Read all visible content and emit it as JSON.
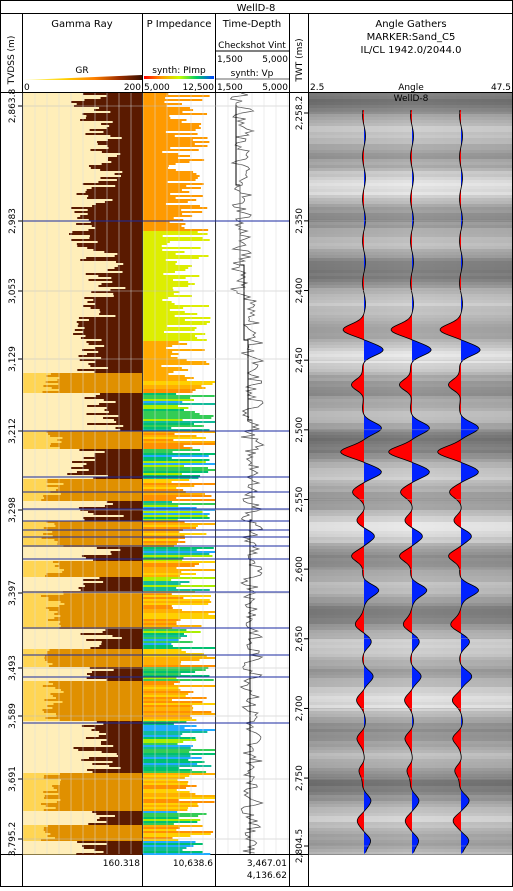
{
  "title": "WellD-8",
  "tracks": {
    "depth_label": "TVDSS (m)",
    "gamma": {
      "header": "Gamma Ray",
      "curve": "GR",
      "min_label": "0",
      "max_label": "200",
      "footer_value": "160.318"
    },
    "impedance": {
      "header": "P Impedance",
      "curve": "synth: PImp",
      "min_label": "5,000",
      "max_label": "12,500",
      "footer_value": "10,638.6"
    },
    "timedepth": {
      "header": "Time-Depth",
      "sub1": "Checkshot Vint",
      "sub1_min": "1,500",
      "sub1_max": "5,000",
      "sub2": "synth: Vp",
      "sub2_min": "1,500",
      "sub2_max": "5,000",
      "footer_value1": "3,467.01",
      "footer_value2": "4,136.62"
    },
    "twt_label": "TWT (ms)",
    "gathers": {
      "header1": "Angle Gathers",
      "header2": "MARKER:Sand_C5",
      "header3": "IL/CL 1942.0/2044.0",
      "axis_min": "2.5",
      "axis_title": "Angle",
      "axis_max": "47.5",
      "well_label": "WellD-8"
    }
  },
  "chart_data": {
    "type": "well-log",
    "title": "WellD-8",
    "depth_axis": {
      "label": "TVDSS (m)",
      "ticks": [
        "2,863.8",
        "2,983",
        "3,053",
        "3,129",
        "3,212",
        "3,298",
        "3,397",
        "3,493",
        "3,589",
        "3,691",
        "3,795.2"
      ]
    },
    "twt_axis": {
      "label": "TWT (ms)",
      "ticks": [
        "2,258.2",
        "2,350",
        "2,400",
        "2,450",
        "2,500",
        "2,550",
        "2,600",
        "2,650",
        "2,700",
        "2,750",
        "2,804.5"
      ],
      "range": [
        2258.2,
        2804.5
      ]
    },
    "gamma_ray": {
      "curve": "GR",
      "xlim": [
        0,
        200
      ],
      "footer": 160.318
    },
    "p_impedance": {
      "curve": "synth: PImp",
      "xlim": [
        5000,
        12500
      ],
      "footer": 10638.6
    },
    "time_depth": {
      "curves": [
        "Checkshot Vint",
        "synth: Vp"
      ],
      "xlim": [
        1500,
        5000
      ],
      "footer": [
        3467.01,
        4136.62
      ]
    },
    "angle_gathers": {
      "marker": "Sand_C5",
      "ilcl": "1942.0/2044.0",
      "angle_range": [
        2.5,
        47.5
      ]
    }
  },
  "colors": {
    "shale": "#5a1a00",
    "sand": "#f5b800",
    "marker": "#1a2aa0",
    "positive": "#ff0000",
    "negative": "#0022ff"
  }
}
